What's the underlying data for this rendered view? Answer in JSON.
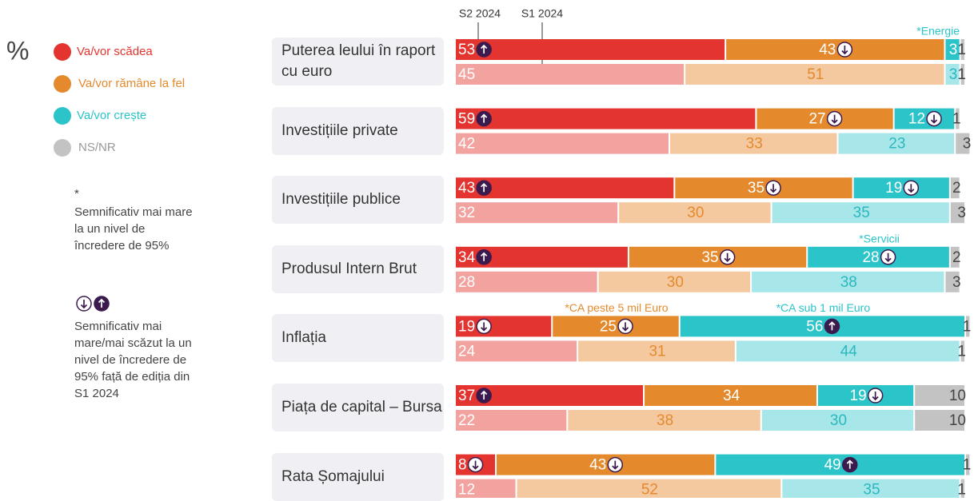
{
  "chart_data": {
    "type": "bar",
    "unit_label": "%",
    "periods": [
      "S2 2024",
      "S1 2024"
    ],
    "categories": [
      "Puterea leului în raport cu euro",
      "Investițiile private",
      "Investițiile publice",
      "Produsul Intern Brut",
      "Inflația",
      "Piața de capital – Bursa",
      "Rata Șomajului"
    ],
    "series": [
      {
        "name": "Va/vor scădea",
        "color": "#e3342f",
        "light_color": "#f2a3a0",
        "text_color": "#ffffff",
        "light_text_color": "#ffffff",
        "values": [
          53,
          59,
          43,
          34,
          19,
          37,
          8
        ],
        "values_prev": [
          45,
          42,
          32,
          28,
          24,
          22,
          12
        ],
        "significance": [
          "up",
          "up",
          "up",
          "up",
          "down",
          "up",
          "down"
        ]
      },
      {
        "name": "Va/vor rămâne la fel",
        "color": "#e48a2d",
        "light_color": "#f5c9a0",
        "text_color": "#ffffff",
        "light_text_color": "#e48a2d",
        "values": [
          43,
          27,
          35,
          35,
          25,
          34,
          43
        ],
        "values_prev": [
          51,
          33,
          30,
          30,
          31,
          38,
          52
        ],
        "significance": [
          "down",
          "down",
          "down",
          "down",
          "down",
          null,
          "down"
        ]
      },
      {
        "name": "Va/vor crește",
        "color": "#2bc4c9",
        "light_color": "#a8e7e9",
        "text_color": "#ffffff",
        "light_text_color": "#2bb7bf",
        "values": [
          3,
          12,
          19,
          28,
          56,
          19,
          49
        ],
        "values_prev": [
          3,
          23,
          35,
          38,
          44,
          30,
          35
        ],
        "significance": [
          null,
          "down",
          "down",
          "down",
          "up",
          "down",
          "up"
        ]
      },
      {
        "name": "NS/NR",
        "color": "#c3c3c3",
        "light_color": "#c3c3c3",
        "text_color": "#444444",
        "light_text_color": "#444444",
        "values": [
          1,
          1,
          2,
          2,
          1,
          10,
          1
        ],
        "values_prev": [
          1,
          3,
          3,
          3,
          1,
          10,
          1
        ],
        "significance": [
          null,
          null,
          null,
          null,
          null,
          null,
          null
        ]
      }
    ],
    "annotations": [
      {
        "text": "*Energie",
        "category": 0,
        "series": 2
      },
      {
        "text": "*Servicii",
        "category": 3,
        "series": 2
      },
      {
        "text": "*CA peste 5 mil Euro",
        "category": 4,
        "series": 1
      },
      {
        "text": "*CA sub 1 mil Euro",
        "category": 4,
        "series": 2
      }
    ],
    "xlim": [
      0,
      100
    ],
    "notes": [
      {
        "symbol": "*",
        "text": "Semnificativ mai mare la un nivel de încredere de 95%"
      },
      {
        "text": "Semnificativ mai mare/mai scăzut la un nivel de încredere de 95% față de ediția din S1 2024"
      }
    ]
  }
}
